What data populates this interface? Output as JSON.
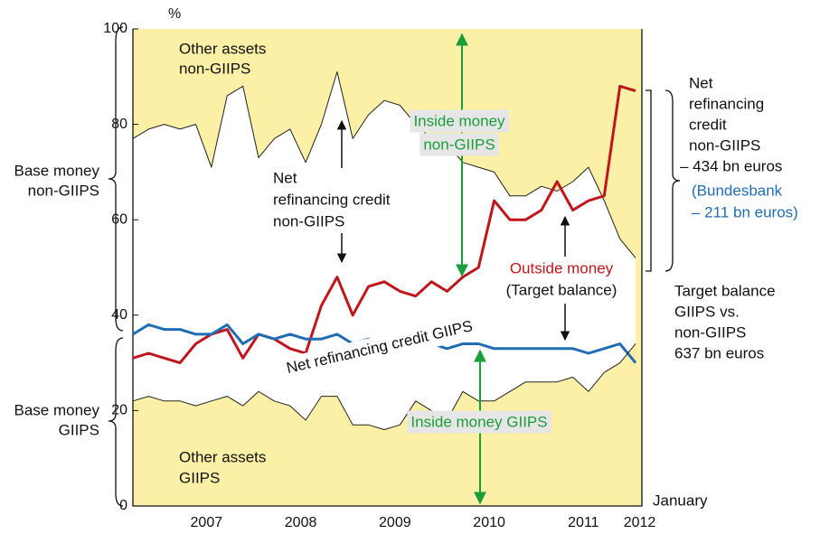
{
  "chart_data": {
    "type": "line",
    "y_unit": "%",
    "x": [
      2006.72,
      2006.887,
      2007.053,
      2007.22,
      2007.387,
      2007.553,
      2007.72,
      2007.887,
      2008.053,
      2008.22,
      2008.387,
      2008.553,
      2008.72,
      2008.887,
      2009.053,
      2009.22,
      2009.387,
      2009.553,
      2009.72,
      2009.887,
      2010.053,
      2010.22,
      2010.387,
      2010.553,
      2010.72,
      2010.887,
      2011.053,
      2011.22,
      2011.387,
      2011.553,
      2011.72,
      2011.887,
      2012.053
    ],
    "series": [
      {
        "color": "#222222",
        "line_width": 1,
        "values": [
          77,
          79,
          80,
          79,
          80,
          71,
          86,
          88,
          73,
          77,
          79,
          72,
          80,
          91,
          77,
          82,
          85,
          84,
          80,
          77,
          76,
          72,
          71,
          70,
          65,
          65,
          67,
          66,
          68,
          71,
          64,
          56,
          52
        ]
      },
      {
        "color": "#c0151b",
        "line_width": 3,
        "values": [
          31,
          32,
          31,
          30,
          34,
          36,
          37,
          31,
          36,
          35,
          33,
          32,
          42,
          48,
          40,
          46,
          47,
          45,
          44,
          47,
          45,
          48,
          50,
          64,
          60,
          60,
          62,
          68,
          62,
          64,
          65,
          88,
          87
        ]
      },
      {
        "color": "#1f6db5",
        "line_width": 3,
        "values": [
          36,
          38,
          37,
          37,
          36,
          36,
          38,
          34,
          36,
          35,
          36,
          35,
          35,
          36,
          34,
          35,
          35,
          34,
          35,
          34,
          33,
          34,
          34,
          33,
          33,
          33,
          33,
          33,
          33,
          32,
          33,
          34,
          30
        ]
      },
      {
        "color": "#222222",
        "line_width": 1,
        "values": [
          22,
          23,
          22,
          22,
          21,
          22,
          23,
          21,
          24,
          22,
          21,
          18,
          23,
          23,
          17,
          17,
          16,
          17,
          22,
          20,
          18,
          24,
          22,
          22,
          24,
          26,
          26,
          26,
          27,
          24,
          28,
          30,
          34
        ]
      }
    ],
    "background_color": "#fbf0a6",
    "band_color": "#ffffff",
    "band_series": [
      0,
      3
    ],
    "xlim": [
      2006.72,
      2012.12
    ],
    "xticks": [
      {
        "value": 2007.5,
        "label": "2007"
      },
      {
        "value": 2008.5,
        "label": "2008"
      },
      {
        "value": 2009.5,
        "label": "2009"
      },
      {
        "value": 2010.5,
        "label": "2010"
      },
      {
        "value": 2011.5,
        "label": "2011"
      },
      {
        "value": 2012,
        "label": "2012"
      }
    ],
    "ylim": [
      0,
      100
    ],
    "yticks": [
      0,
      20,
      40,
      60,
      80,
      100
    ],
    "annotations": [
      {
        "lines": [
          "Other assets",
          "non-GIIPS"
        ],
        "color": "#111111"
      },
      {
        "lines": [
          "Inside money",
          "non-GIIPS"
        ],
        "color": "#1a9e3a"
      },
      {
        "lines": [
          "Net",
          "refinancing credit",
          "non-GIIPS"
        ],
        "color": "#111111"
      },
      {
        "lines": [
          "Outside money"
        ],
        "color": "#c0151b"
      },
      {
        "lines": [
          "(Target balance)"
        ],
        "color": "#111111"
      },
      {
        "lines": [
          "Net refinancing credit GIIPS"
        ],
        "color": "#111111"
      },
      {
        "lines": [
          "Inside money GIIPS"
        ],
        "color": "#1a9e3a"
      },
      {
        "lines": [
          "Other assets",
          "GIIPS"
        ],
        "color": "#111111"
      },
      {
        "lines": [
          "Base money",
          "non-GIIPS"
        ],
        "color": "#111111"
      },
      {
        "lines": [
          "Base money",
          "GIIPS"
        ],
        "color": "#111111"
      },
      {
        "lines": [
          "Net",
          "refinancing",
          "credit",
          "non-GIIPS",
          "– 434 bn euros"
        ],
        "color": "#111111"
      },
      {
        "lines": [
          "(Bundesbank",
          "– 211 bn euros)"
        ],
        "color": "#1f6db5"
      },
      {
        "lines": [
          "Target balance",
          "GIIPS vs.",
          "non-GIIPS",
          "637 bn euros"
        ],
        "color": "#111111"
      },
      {
        "lines": [
          "January"
        ],
        "color": "#111111"
      }
    ]
  }
}
